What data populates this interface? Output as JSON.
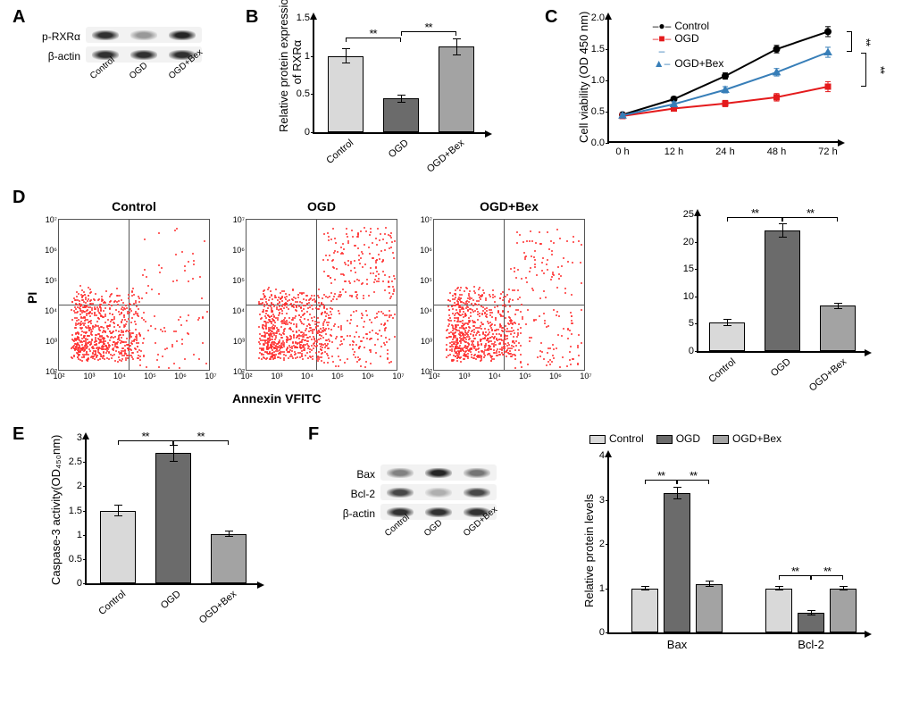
{
  "colors": {
    "control": "#d9d9d9",
    "ogd": "#6b6b6b",
    "ogdbex": "#a3a3a3",
    "axis": "#000000",
    "flow_dot": "#ff3030",
    "line_control": "#000000",
    "line_ogd": "#e41a1c",
    "line_ogdbex": "#377eb8",
    "bg": "#ffffff"
  },
  "groups": [
    "Control",
    "OGD",
    "OGD+Bex"
  ],
  "panelA": {
    "rows": [
      {
        "label": "p-RXRα",
        "intensity": [
          0.9,
          0.45,
          0.95
        ]
      },
      {
        "label": "β-actin",
        "intensity": [
          0.9,
          0.9,
          0.9
        ]
      }
    ]
  },
  "panelB": {
    "ylabel": "Relative protein expression\nof RXRα",
    "ylim": [
      0,
      1.5
    ],
    "ystep": 0.5,
    "values": [
      1.0,
      0.44,
      1.12
    ],
    "errors": [
      0.1,
      0.05,
      0.11
    ],
    "sig": [
      {
        "from": 0,
        "to": 1,
        "stars": "**",
        "y": 1.24
      },
      {
        "from": 1,
        "to": 2,
        "stars": "**",
        "y": 1.32
      }
    ]
  },
  "panelC": {
    "ylabel": "Cell viability (OD 450 nm)",
    "ylim": [
      0,
      2.0
    ],
    "ystep": 0.5,
    "x_ticks": [
      "0 h",
      "12 h",
      "24 h",
      "48 h",
      "72 h"
    ],
    "legend": [
      "Control",
      "OGD",
      "OGD+Bex"
    ],
    "series": {
      "Control": {
        "color": "#000000",
        "marker": "circle",
        "y": [
          0.45,
          0.7,
          1.07,
          1.5,
          1.78
        ],
        "err": [
          0.03,
          0.04,
          0.05,
          0.06,
          0.08
        ]
      },
      "OGD": {
        "color": "#e41a1c",
        "marker": "square",
        "y": [
          0.43,
          0.55,
          0.63,
          0.73,
          0.9
        ],
        "err": [
          0.03,
          0.04,
          0.05,
          0.06,
          0.08
        ]
      },
      "OGD+Bex": {
        "color": "#377eb8",
        "marker": "triangle",
        "y": [
          0.44,
          0.62,
          0.85,
          1.13,
          1.45
        ],
        "err": [
          0.03,
          0.04,
          0.05,
          0.06,
          0.08
        ]
      }
    },
    "sig_right": [
      {
        "from": "Control",
        "to": "OGD+Bex",
        "stars": "**"
      },
      {
        "from": "OGD",
        "to": "OGD+Bex",
        "stars": "**"
      }
    ]
  },
  "panelD": {
    "plot_titles": [
      "Control",
      "OGD",
      "OGD+Bex"
    ],
    "y_axis_label": "PI",
    "x_axis_label": "Annexin VFITC",
    "log_ticks": [
      "10²",
      "10³",
      "10⁴",
      "10⁵",
      "10⁶",
      "10⁷"
    ],
    "bar": {
      "ylim": [
        0,
        25
      ],
      "ystep": 5,
      "values": [
        5.2,
        22.0,
        8.3
      ],
      "errors": [
        0.7,
        1.3,
        0.6
      ],
      "sig": [
        {
          "from": 0,
          "to": 1,
          "stars": "**",
          "y": 24.5
        },
        {
          "from": 1,
          "to": 2,
          "stars": "**",
          "y": 24.5
        }
      ]
    }
  },
  "panelE": {
    "ylabel": "Caspase-3 activity(OD₄₅₀nm)",
    "ylim": [
      0,
      3.0
    ],
    "ystep": 0.5,
    "values": [
      1.5,
      2.68,
      1.02
    ],
    "errors": [
      0.12,
      0.18,
      0.07
    ],
    "sig": [
      {
        "from": 0,
        "to": 1,
        "stars": "**",
        "y": 2.95
      },
      {
        "from": 1,
        "to": 2,
        "stars": "**",
        "y": 2.95
      }
    ]
  },
  "panelF": {
    "blot_rows": [
      {
        "label": "Bax",
        "intensity": [
          0.55,
          0.95,
          0.6
        ]
      },
      {
        "label": "Bcl-2",
        "intensity": [
          0.8,
          0.35,
          0.8
        ]
      },
      {
        "label": "β-actin",
        "intensity": [
          0.9,
          0.9,
          0.9
        ]
      }
    ],
    "legend": [
      "Control",
      "OGD",
      "OGD+Bex"
    ],
    "ylabel": "Relative protein levels",
    "ylim": [
      0,
      4
    ],
    "ystep": 1,
    "groups_x": [
      "Bax",
      "Bcl-2"
    ],
    "series": {
      "Bax": {
        "values": [
          1.0,
          3.15,
          1.1
        ],
        "errors": [
          0.05,
          0.15,
          0.08
        ]
      },
      "Bcl-2": {
        "values": [
          1.0,
          0.45,
          1.0
        ],
        "errors": [
          0.06,
          0.06,
          0.06
        ]
      }
    },
    "sig": [
      {
        "group": "Bax",
        "from": 0,
        "to": 1,
        "stars": "**",
        "y": 3.45
      },
      {
        "group": "Bax",
        "from": 1,
        "to": 2,
        "stars": "**",
        "y": 3.45
      },
      {
        "group": "Bcl-2",
        "from": 0,
        "to": 1,
        "stars": "**",
        "y": 1.3
      },
      {
        "group": "Bcl-2",
        "from": 1,
        "to": 2,
        "stars": "**",
        "y": 1.3
      }
    ]
  }
}
